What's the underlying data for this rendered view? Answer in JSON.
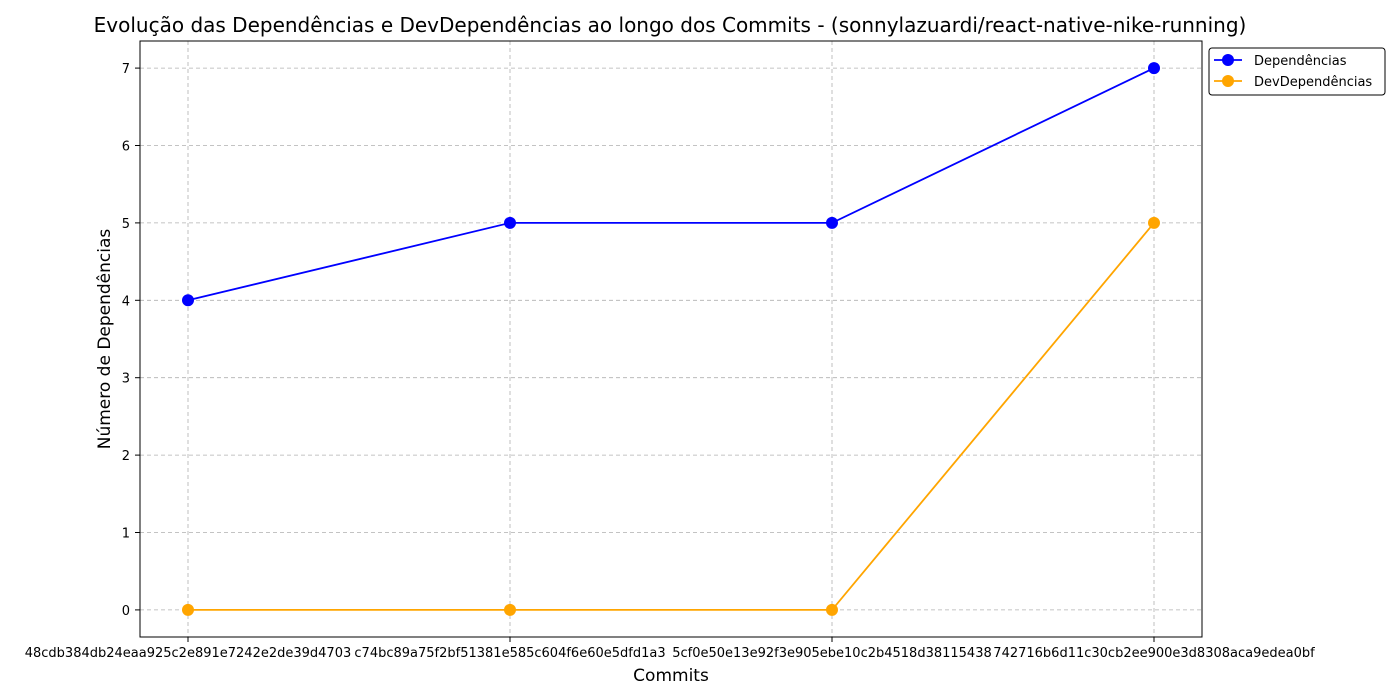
{
  "chart_data": {
    "type": "line",
    "title": "Evolução das Dependências e DevDependências ao longo dos Commits - (sonnylazuardi/react-native-nike-running)",
    "xlabel": "Commits",
    "ylabel": "Número de Dependências",
    "categories": [
      "48cdb384db24eaa925c2e891e7242e2de39d4703",
      "c74bc89a75f2bf51381e585c604f6e60e5dfd1a3",
      "5cf0e50e13e92f3e905ebe10c2b4518d38115438",
      "742716b6d11c30cb2ee900e3d8308aca9edea0bf"
    ],
    "series": [
      {
        "name": "Dependências",
        "values": [
          4,
          5,
          5,
          7
        ],
        "color": "#0000ff"
      },
      {
        "name": "DevDependências",
        "values": [
          0,
          0,
          0,
          5
        ],
        "color": "#ffa500"
      }
    ],
    "ylim": [
      -0.35,
      7.35
    ],
    "yticks": [
      0,
      1,
      2,
      3,
      4,
      5,
      6,
      7
    ],
    "grid": true,
    "marker": "circle",
    "legend_position": "outside-top-right"
  }
}
